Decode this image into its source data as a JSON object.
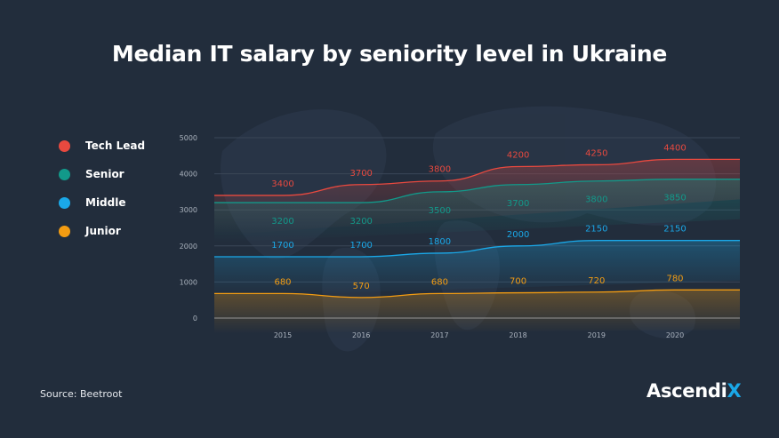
{
  "title": "Median IT salary by seniority level in Ukraine",
  "source": "Source: Beetroot",
  "logo": {
    "text": "Ascendi",
    "accent_letter": "X"
  },
  "chart_data": {
    "type": "line",
    "title": "Median IT salary by seniority level in Ukraine",
    "x": [
      "2015",
      "2016",
      "2017",
      "2018",
      "2019",
      "2020"
    ],
    "ylim": [
      0,
      5000
    ],
    "yticks": [
      "0",
      "1000",
      "2000",
      "3000",
      "4000",
      "5000"
    ],
    "grid": true,
    "legend_placement": "left",
    "series": [
      {
        "name": "Tech Lead",
        "color": "#e8493f",
        "values": [
          3400,
          3700,
          3800,
          4200,
          4250,
          4400
        ]
      },
      {
        "name": "Senior",
        "color": "#12998a",
        "values": [
          3200,
          3200,
          3500,
          3700,
          3800,
          3850
        ]
      },
      {
        "name": "Middle",
        "color": "#1aa8e8",
        "values": [
          1700,
          1700,
          1800,
          2000,
          2150,
          2150
        ]
      },
      {
        "name": "Junior",
        "color": "#f39c12",
        "values": [
          680,
          570,
          680,
          700,
          720,
          780
        ]
      }
    ]
  }
}
